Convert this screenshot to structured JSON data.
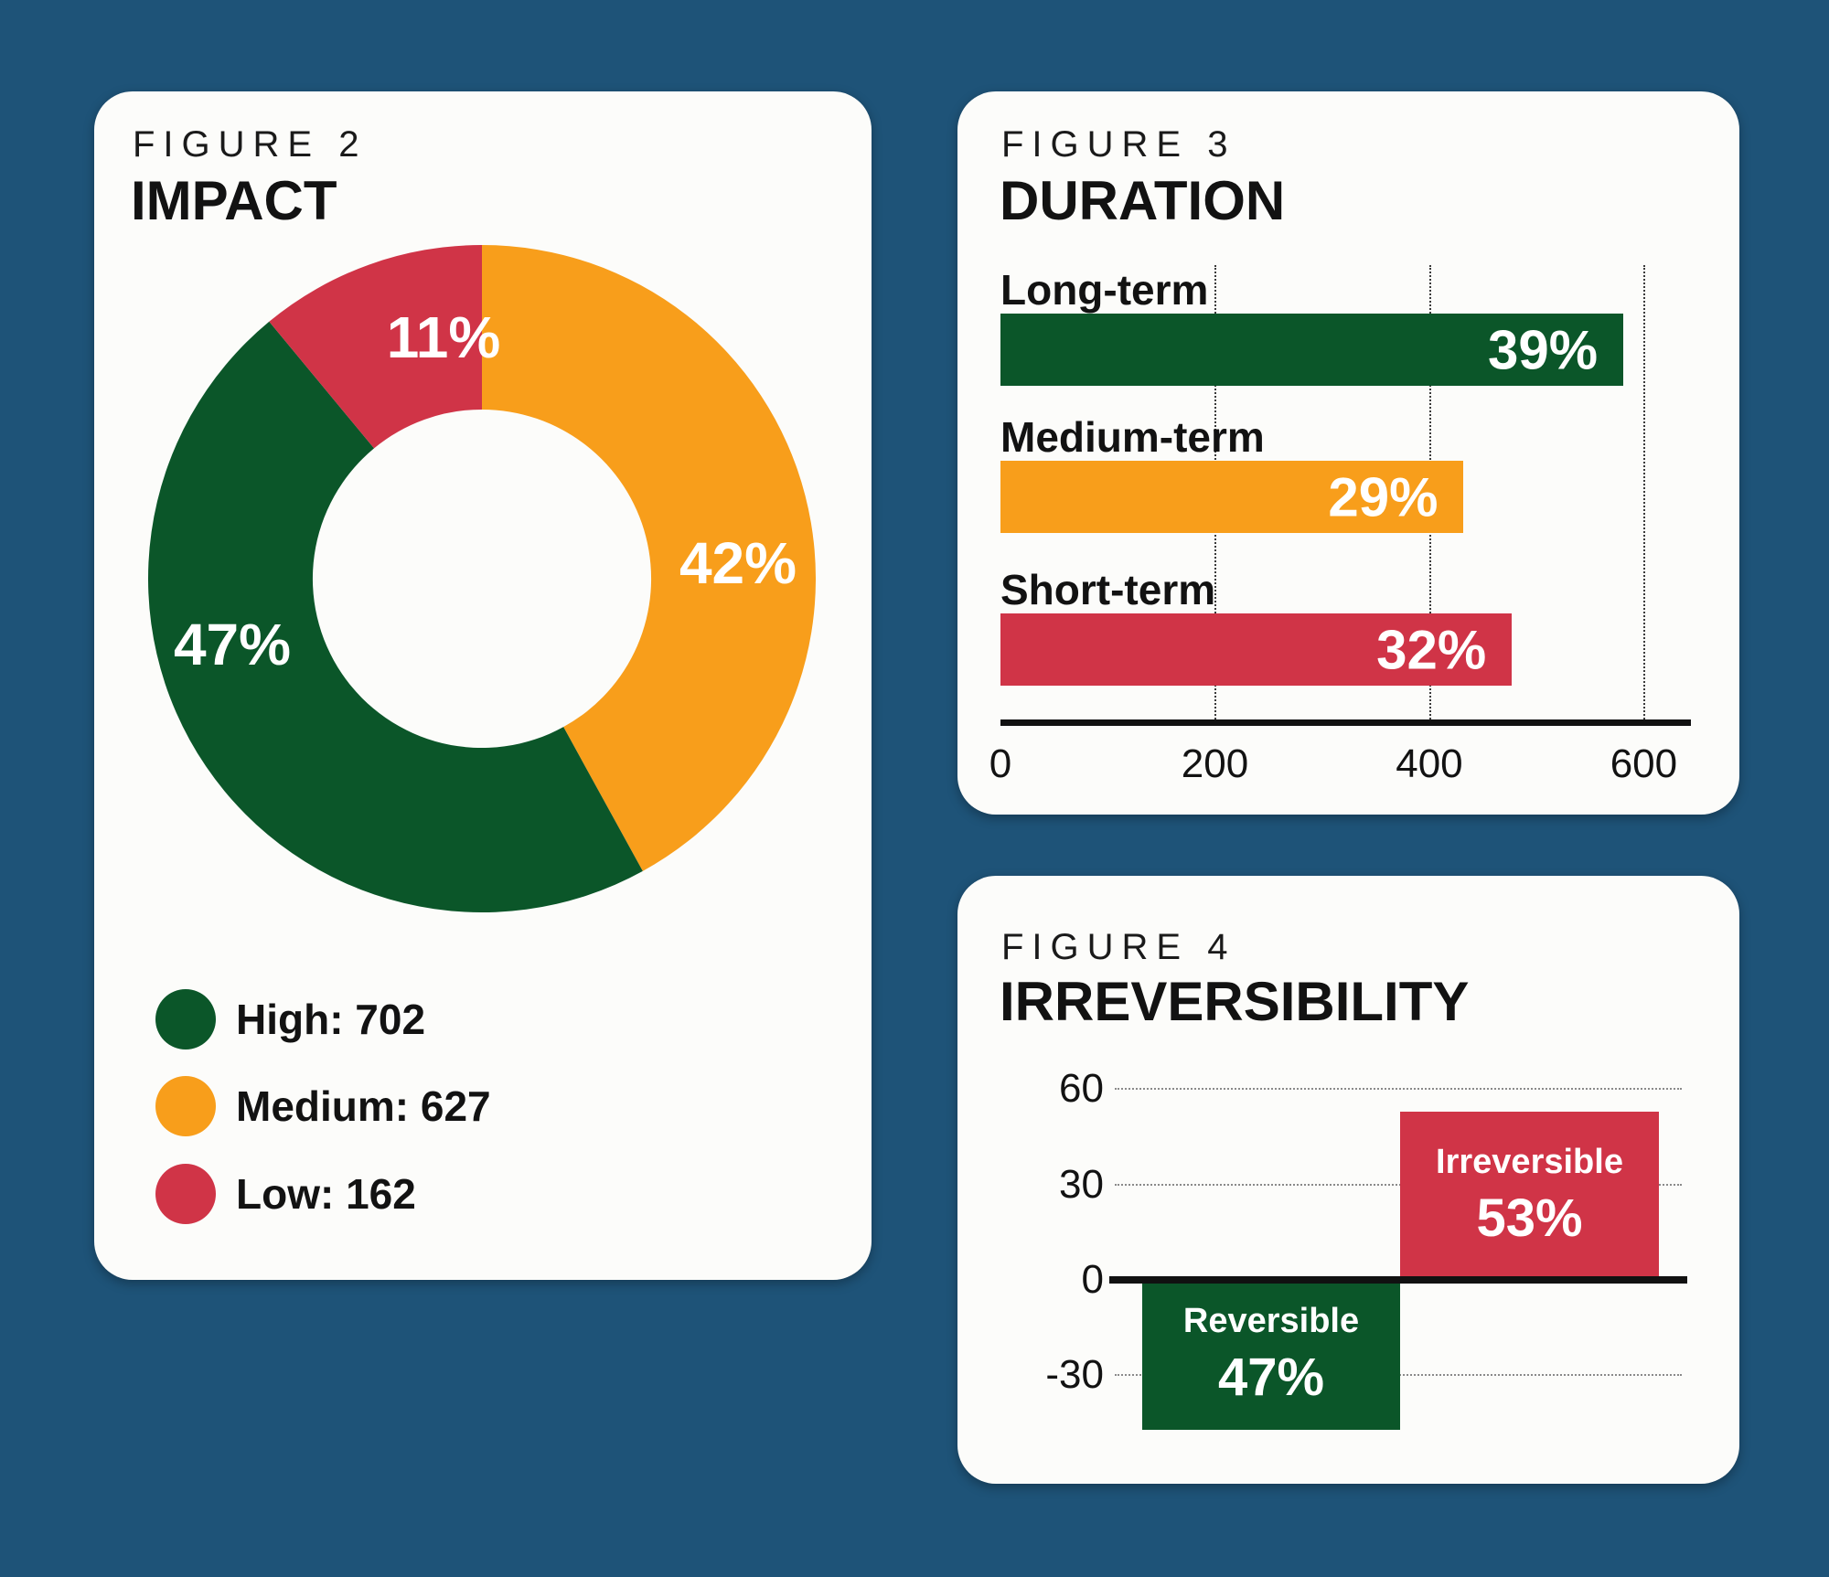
{
  "background_color": "#1E5378",
  "card_color": "#FCFCFA",
  "text_color": "#121212",
  "accent_colors": {
    "green": "#0B5629",
    "orange": "#F89E1B",
    "red": "#D03447"
  },
  "chart_data": [
    {
      "id": "impact-donut",
      "type": "pie",
      "subtype": "donut",
      "figure_label": "FIGURE 2",
      "title": "IMPACT",
      "inner_radius_ratio": 0.507,
      "segments": [
        {
          "label": "Medium",
          "count": 627,
          "pct": 42,
          "pct_label": "42%",
          "color": "#F89E1B"
        },
        {
          "label": "High",
          "count": 702,
          "pct": 47,
          "pct_label": "47%",
          "color": "#0B5629"
        },
        {
          "label": "Low",
          "count": 162,
          "pct": 11,
          "pct_label": "11%",
          "color": "#D03447"
        }
      ],
      "legend": [
        {
          "label": "High: 702",
          "color": "#0B5629"
        },
        {
          "label": "Medium: 627",
          "color": "#F89E1B"
        },
        {
          "label": "Low: 162",
          "color": "#D03447"
        }
      ]
    },
    {
      "id": "duration-bars",
      "type": "bar",
      "orientation": "horizontal",
      "figure_label": "FIGURE 3",
      "title": "DURATION",
      "categories": [
        "Long-term",
        "Medium-term",
        "Short-term"
      ],
      "values": [
        581,
        432,
        477
      ],
      "pct_labels": [
        "39%",
        "29%",
        "32%"
      ],
      "colors": [
        "#0B5629",
        "#F89E1B",
        "#D03447"
      ],
      "xlim": [
        0,
        644
      ],
      "xticks": [
        "0",
        "200",
        "400",
        "600"
      ],
      "xtick_values": [
        0,
        200,
        400,
        600
      ],
      "grid": "vertical-dotted"
    },
    {
      "id": "irreversibility-bars",
      "type": "bar",
      "orientation": "vertical",
      "figure_label": "FIGURE 4",
      "title": "IRREVERSIBILITY",
      "categories": [
        "Reversible",
        "Irreversible"
      ],
      "values": [
        -47,
        53
      ],
      "bar_labels": [
        {
          "name": "Reversible",
          "pct": "47%"
        },
        {
          "name": "Irreversible",
          "pct": "53%"
        }
      ],
      "colors": [
        "#0B5629",
        "#D03447"
      ],
      "ylim": [
        -50,
        65
      ],
      "yticks": [
        "60",
        "30",
        "0",
        "-30"
      ],
      "ytick_values": [
        60,
        30,
        0,
        -30
      ],
      "grid": "horizontal-dotted"
    }
  ]
}
